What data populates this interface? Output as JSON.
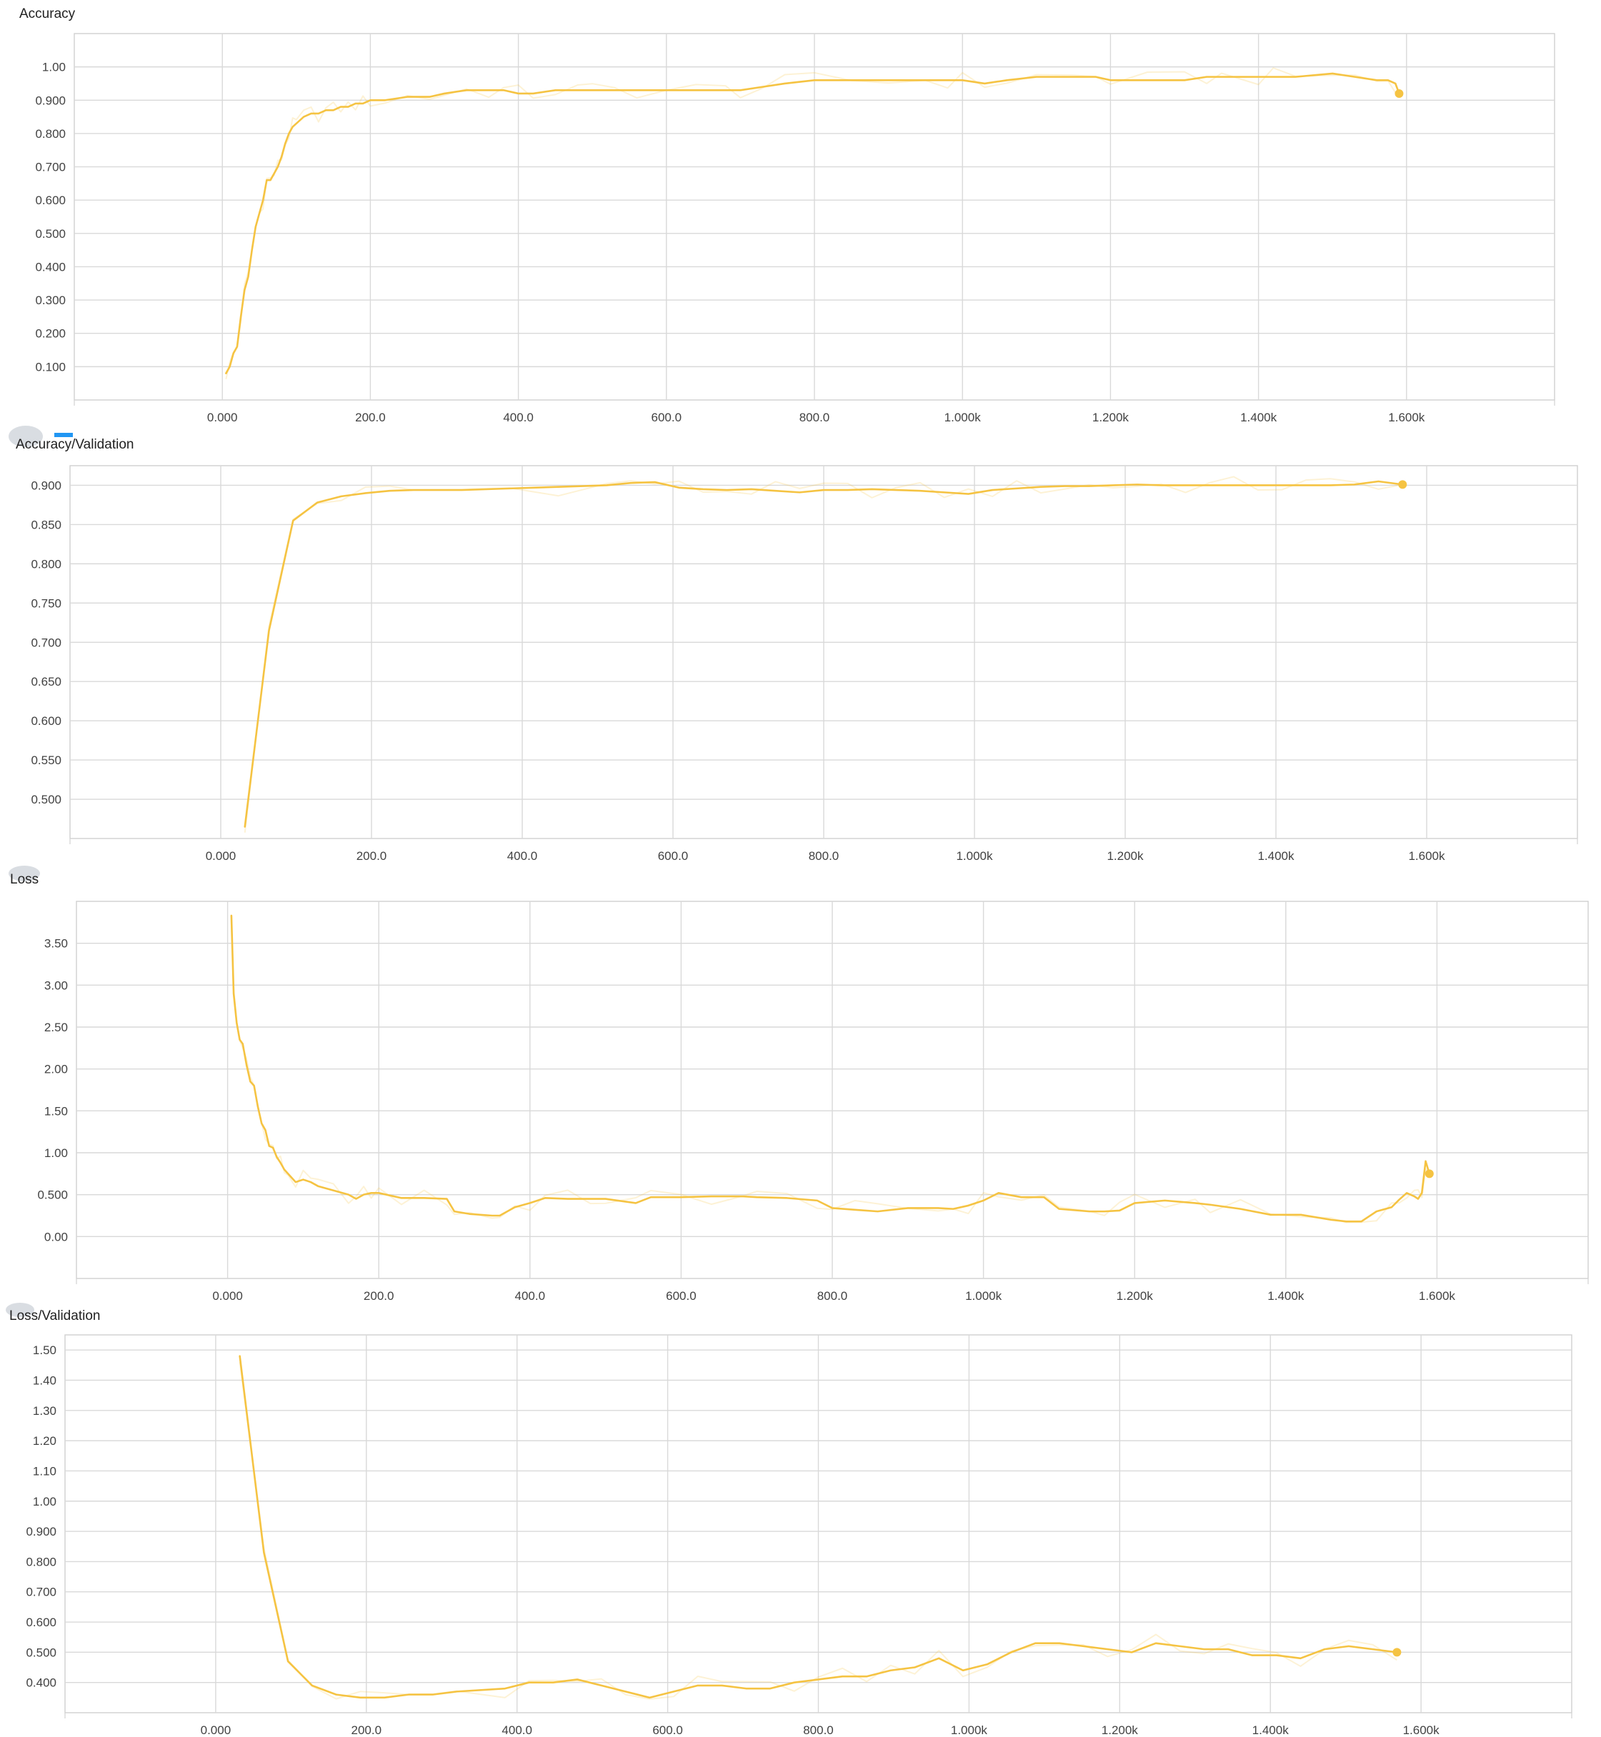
{
  "chart_data": [
    {
      "type": "line",
      "title": "Accuracy",
      "x_ticks": [
        "0.000",
        "200.0",
        "400.0",
        "600.0",
        "800.0",
        "1.000k",
        "1.200k",
        "1.400k",
        "1.600k"
      ],
      "y_ticks": [
        "1.00",
        "0.900",
        "0.800",
        "0.700",
        "0.600",
        "0.500",
        "0.400",
        "0.300",
        "0.200",
        "0.100"
      ],
      "xlim": [
        -200,
        1800
      ],
      "ylim": [
        0.0,
        1.1
      ],
      "grid": true,
      "line_color": "#f5c342",
      "series": [
        {
          "x": [
            5,
            10,
            15,
            20,
            25,
            30,
            35,
            40,
            45,
            50,
            55,
            60,
            65,
            70,
            75,
            80,
            85,
            90,
            95,
            100,
            110,
            120,
            130,
            140,
            150,
            160,
            170,
            180,
            190,
            200,
            220,
            250,
            280,
            300,
            330,
            360,
            380,
            400,
            420,
            450,
            480,
            500,
            530,
            560,
            600,
            640,
            680,
            700,
            730,
            760,
            800,
            850,
            900,
            950,
            980,
            1000,
            1030,
            1060,
            1100,
            1150,
            1180,
            1200,
            1250,
            1300,
            1330,
            1350,
            1400,
            1420,
            1450,
            1500,
            1530,
            1560,
            1575,
            1585,
            1590
          ],
          "y": [
            0.08,
            0.1,
            0.14,
            0.16,
            0.25,
            0.33,
            0.37,
            0.45,
            0.52,
            0.56,
            0.6,
            0.66,
            0.66,
            0.68,
            0.7,
            0.73,
            0.77,
            0.8,
            0.82,
            0.83,
            0.85,
            0.86,
            0.86,
            0.87,
            0.87,
            0.88,
            0.88,
            0.89,
            0.89,
            0.9,
            0.9,
            0.91,
            0.91,
            0.92,
            0.93,
            0.93,
            0.93,
            0.92,
            0.92,
            0.93,
            0.93,
            0.93,
            0.93,
            0.93,
            0.93,
            0.93,
            0.93,
            0.93,
            0.94,
            0.95,
            0.96,
            0.96,
            0.96,
            0.96,
            0.96,
            0.96,
            0.95,
            0.96,
            0.97,
            0.97,
            0.97,
            0.96,
            0.96,
            0.96,
            0.97,
            0.97,
            0.97,
            0.97,
            0.97,
            0.98,
            0.97,
            0.96,
            0.96,
            0.95,
            0.92
          ]
        }
      ]
    },
    {
      "type": "line",
      "title": "Accuracy/Validation",
      "x_ticks": [
        "0.000",
        "200.0",
        "400.0",
        "600.0",
        "800.0",
        "1.000k",
        "1.200k",
        "1.400k",
        "1.600k"
      ],
      "y_ticks": [
        "0.900",
        "0.850",
        "0.800",
        "0.750",
        "0.700",
        "0.650",
        "0.600",
        "0.550",
        "0.500"
      ],
      "xlim": [
        -200,
        1800
      ],
      "ylim": [
        0.45,
        0.925
      ],
      "grid": true,
      "line_color": "#f5c342",
      "series": [
        {
          "x": [
            32,
            64,
            96,
            128,
            160,
            192,
            224,
            256,
            320,
            384,
            448,
            512,
            544,
            576,
            608,
            640,
            672,
            704,
            736,
            768,
            800,
            832,
            864,
            896,
            928,
            960,
            992,
            1024,
            1056,
            1088,
            1120,
            1152,
            1184,
            1216,
            1248,
            1280,
            1312,
            1344,
            1376,
            1408,
            1440,
            1472,
            1504,
            1536,
            1568
          ],
          "y": [
            0.465,
            0.715,
            0.855,
            0.878,
            0.886,
            0.89,
            0.893,
            0.894,
            0.894,
            0.896,
            0.898,
            0.9,
            0.903,
            0.904,
            0.897,
            0.895,
            0.894,
            0.895,
            0.893,
            0.891,
            0.894,
            0.894,
            0.895,
            0.894,
            0.893,
            0.891,
            0.889,
            0.894,
            0.896,
            0.898,
            0.899,
            0.899,
            0.9,
            0.901,
            0.9,
            0.9,
            0.9,
            0.9,
            0.9,
            0.9,
            0.9,
            0.9,
            0.901,
            0.905,
            0.901
          ]
        }
      ]
    },
    {
      "type": "line",
      "title": "Loss",
      "x_ticks": [
        "0.000",
        "200.0",
        "400.0",
        "600.0",
        "800.0",
        "1.000k",
        "1.200k",
        "1.400k",
        "1.600k"
      ],
      "y_ticks": [
        "3.50",
        "3.00",
        "2.50",
        "2.00",
        "1.50",
        "1.00",
        "0.500",
        "0.00"
      ],
      "xlim": [
        -200,
        1800
      ],
      "ylim": [
        -0.5,
        4.0
      ],
      "grid": true,
      "line_color": "#f5c342",
      "series": [
        {
          "x": [
            5,
            8,
            12,
            16,
            20,
            25,
            30,
            35,
            40,
            45,
            50,
            55,
            60,
            65,
            70,
            75,
            80,
            90,
            100,
            110,
            120,
            140,
            160,
            170,
            180,
            190,
            200,
            230,
            260,
            290,
            300,
            320,
            350,
            360,
            380,
            400,
            420,
            450,
            480,
            500,
            540,
            560,
            600,
            640,
            680,
            700,
            740,
            780,
            800,
            830,
            860,
            900,
            940,
            960,
            980,
            1000,
            1020,
            1050,
            1080,
            1100,
            1140,
            1160,
            1180,
            1200,
            1240,
            1280,
            1300,
            1340,
            1380,
            1420,
            1460,
            1480,
            1500,
            1520,
            1540,
            1550,
            1560,
            1570,
            1575,
            1580,
            1585,
            1590
          ],
          "y": [
            3.83,
            2.9,
            2.55,
            2.35,
            2.3,
            2.05,
            1.85,
            1.8,
            1.55,
            1.35,
            1.27,
            1.08,
            1.06,
            0.95,
            0.88,
            0.8,
            0.75,
            0.65,
            0.68,
            0.65,
            0.6,
            0.55,
            0.5,
            0.45,
            0.5,
            0.52,
            0.52,
            0.46,
            0.46,
            0.45,
            0.3,
            0.27,
            0.25,
            0.25,
            0.35,
            0.4,
            0.46,
            0.45,
            0.45,
            0.45,
            0.4,
            0.47,
            0.47,
            0.48,
            0.48,
            0.47,
            0.46,
            0.43,
            0.34,
            0.32,
            0.3,
            0.34,
            0.34,
            0.33,
            0.37,
            0.43,
            0.52,
            0.47,
            0.47,
            0.33,
            0.3,
            0.3,
            0.31,
            0.4,
            0.43,
            0.4,
            0.38,
            0.33,
            0.26,
            0.26,
            0.2,
            0.18,
            0.18,
            0.3,
            0.35,
            0.44,
            0.52,
            0.48,
            0.45,
            0.52,
            0.9,
            0.75
          ]
        }
      ]
    },
    {
      "type": "line",
      "title": "Loss/Validation",
      "x_ticks": [
        "0.000",
        "200.0",
        "400.0",
        "600.0",
        "800.0",
        "1.000k",
        "1.200k",
        "1.400k",
        "1.600k"
      ],
      "y_ticks": [
        "1.50",
        "1.40",
        "1.30",
        "1.20",
        "1.10",
        "1.00",
        "0.900",
        "0.800",
        "0.700",
        "0.600",
        "0.500",
        "0.400"
      ],
      "xlim": [
        -200,
        1800
      ],
      "ylim": [
        0.3,
        1.55
      ],
      "grid": true,
      "line_color": "#f5c342",
      "series": [
        {
          "x": [
            32,
            64,
            96,
            128,
            160,
            192,
            224,
            256,
            288,
            320,
            384,
            416,
            448,
            480,
            512,
            544,
            576,
            608,
            640,
            672,
            704,
            736,
            768,
            800,
            832,
            864,
            896,
            928,
            960,
            992,
            1024,
            1056,
            1088,
            1120,
            1152,
            1184,
            1216,
            1248,
            1280,
            1312,
            1344,
            1376,
            1408,
            1440,
            1472,
            1504,
            1536,
            1568
          ],
          "y": [
            1.48,
            0.83,
            0.47,
            0.39,
            0.36,
            0.35,
            0.35,
            0.36,
            0.36,
            0.37,
            0.38,
            0.4,
            0.4,
            0.41,
            0.39,
            0.37,
            0.35,
            0.37,
            0.39,
            0.39,
            0.38,
            0.38,
            0.4,
            0.41,
            0.42,
            0.42,
            0.44,
            0.45,
            0.48,
            0.44,
            0.46,
            0.5,
            0.53,
            0.53,
            0.52,
            0.51,
            0.5,
            0.53,
            0.52,
            0.51,
            0.51,
            0.49,
            0.49,
            0.48,
            0.51,
            0.52,
            0.51,
            0.5
          ]
        }
      ]
    }
  ]
}
